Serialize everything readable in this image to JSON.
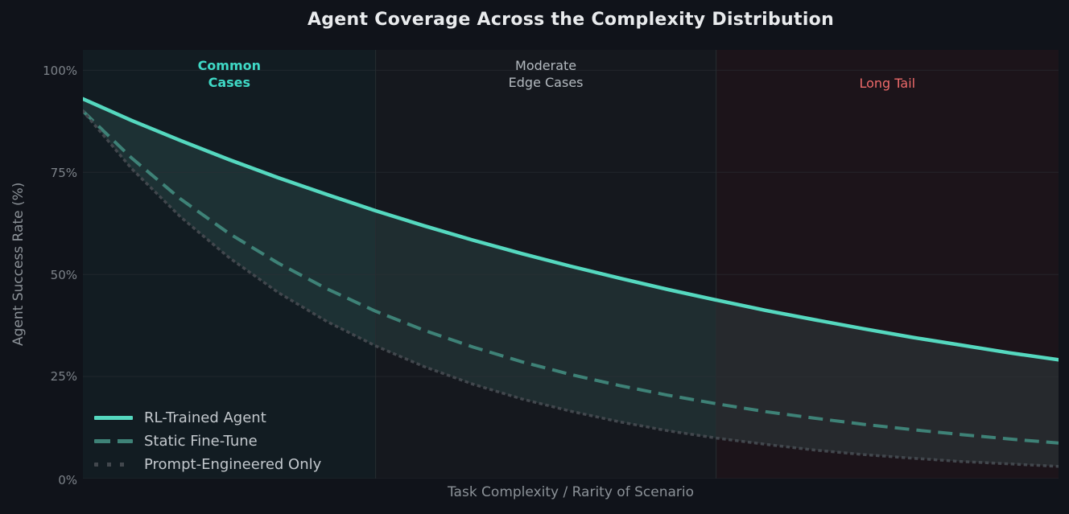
{
  "title": "Agent Coverage Across the Complexity Distribution",
  "colors": {
    "page_bg": "#10131a",
    "title_text": "#e9ebed",
    "axis_text": "#8b9197",
    "tick_text": "#7d838a",
    "legend_text": "#c3c8cd",
    "grid_line": "#2c3136",
    "region_boundary_line": "#272c30",
    "band_fill": "rgba(127,239,217,0.10)"
  },
  "chart_data": {
    "type": "line",
    "title": "Agent Coverage Across the Complexity Distribution",
    "xlabel": "Task Complexity / Rarity of Scenario",
    "ylabel": "Agent Success Rate (%)",
    "ylim": [
      0,
      105
    ],
    "grid": true,
    "yticks": [
      {
        "value": 0,
        "label": "0%"
      },
      {
        "value": 25,
        "label": "25%"
      },
      {
        "value": 50,
        "label": "50%"
      },
      {
        "value": 75,
        "label": "75%"
      },
      {
        "value": 100,
        "label": "100%"
      }
    ],
    "x_relative": [
      0,
      0.05,
      0.1,
      0.15,
      0.2,
      0.25,
      0.3,
      0.35,
      0.4,
      0.45,
      0.5,
      0.55,
      0.6,
      0.65,
      0.7,
      0.75,
      0.8,
      0.85,
      0.9,
      0.95,
      1
    ],
    "series": [
      {
        "name": "RL-Trained Agent",
        "style": "solid",
        "color": "#55d8bf",
        "width": 4.5,
        "values": [
          93,
          87.7,
          82.8,
          78.1,
          73.7,
          69.6,
          65.6,
          61.9,
          58.4,
          55.1,
          52,
          49.1,
          46.3,
          43.7,
          41.2,
          38.9,
          36.7,
          34.6,
          32.7,
          30.8,
          29.1
        ]
      },
      {
        "name": "Static Fine-Tune",
        "style": "dashed",
        "color": "#3e8277",
        "width": 4,
        "values": [
          90,
          78.5,
          68.5,
          60,
          52.8,
          46.5,
          41,
          36.3,
          32.2,
          28.6,
          25.5,
          22.8,
          20.4,
          18.3,
          16.4,
          14.8,
          13.3,
          12,
          10.8,
          9.7,
          8.7
        ]
      },
      {
        "name": "Prompt-Engineered Only",
        "style": "dotted",
        "color": "#42474d",
        "width": 3.5,
        "values": [
          90,
          75.9,
          64.1,
          54.1,
          45.6,
          38.5,
          32.5,
          27.4,
          23.1,
          19.5,
          16.5,
          13.9,
          11.7,
          9.9,
          8.4,
          7,
          5.9,
          5,
          4.2,
          3.6,
          3
        ]
      }
    ],
    "fill_between": {
      "upper": "RL-Trained Agent",
      "lower": "Prompt-Engineered Only",
      "color": "rgba(127,239,217,0.10)"
    },
    "regions": [
      {
        "label": "Common\nCases",
        "start": 0,
        "end": 0.3,
        "bg": "#121c22",
        "label_color": "#3fd9c6"
      },
      {
        "label": "Moderate\nEdge Cases",
        "start": 0.3,
        "end": 0.649,
        "bg": "#15181e",
        "label_color": "#b4bac0"
      },
      {
        "label": "Long Tail",
        "start": 0.649,
        "end": 1,
        "bg": "#1c141a",
        "label_color": "#ee6a6a"
      }
    ],
    "legend": {
      "position": "lower-left",
      "entries": [
        "RL-Trained Agent",
        "Static Fine-Tune",
        "Prompt-Engineered Only"
      ]
    }
  }
}
